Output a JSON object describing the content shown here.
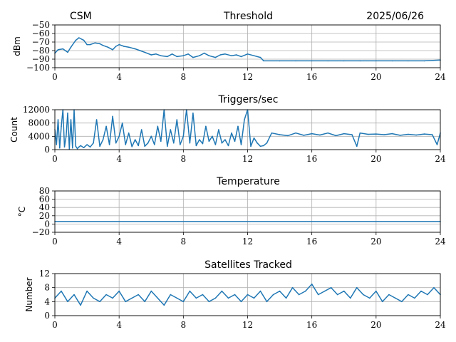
{
  "header": {
    "left": "CSM",
    "right": "2025/06/26"
  },
  "colors": {
    "series": "#1f77b4",
    "grid": "#b0b0b0"
  },
  "chart_data": [
    {
      "type": "line",
      "title": "Threshold",
      "ylabel": "dBm",
      "xlim": [
        0,
        24
      ],
      "ylim": [
        -100,
        -50
      ],
      "xticks": [
        "0",
        "4",
        "8",
        "12",
        "16",
        "20",
        "24"
      ],
      "yticks": [
        "−100",
        "−90",
        "−80",
        "−70",
        "−60",
        "−50"
      ],
      "yticks_values": [
        -100,
        -90,
        -80,
        -70,
        -60,
        -50
      ],
      "grid": true,
      "x": [
        0,
        0.2,
        0.5,
        0.8,
        1.0,
        1.3,
        1.5,
        1.8,
        2.0,
        2.2,
        2.5,
        2.8,
        3.0,
        3.3,
        3.6,
        3.8,
        4.0,
        4.3,
        4.6,
        5.0,
        5.3,
        5.6,
        6.0,
        6.3,
        6.6,
        7.0,
        7.3,
        7.6,
        8.0,
        8.3,
        8.6,
        9.0,
        9.3,
        9.6,
        10.0,
        10.3,
        10.6,
        11.0,
        11.3,
        11.6,
        12.0,
        12.4,
        12.8,
        13.0,
        14.0,
        15.0,
        16.0,
        17.0,
        18.0,
        19.0,
        20.0,
        21.0,
        22.0,
        23.0,
        24.0
      ],
      "values": [
        -83,
        -79,
        -78,
        -82,
        -76,
        -68,
        -65,
        -68,
        -73,
        -73,
        -71,
        -72,
        -74,
        -76,
        -79,
        -75,
        -73,
        -75,
        -76,
        -78,
        -80,
        -82,
        -85,
        -84,
        -86,
        -87,
        -84,
        -87,
        -86,
        -84,
        -88,
        -86,
        -83,
        -86,
        -88,
        -85,
        -84,
        -86,
        -85,
        -87,
        -84,
        -86,
        -88,
        -92,
        -92,
        -92,
        -92,
        -92,
        -92,
        -92,
        -92,
        -92,
        -92,
        -92,
        -91
      ]
    },
    {
      "type": "line",
      "title": "Triggers/sec",
      "ylabel": "Count",
      "xlim": [
        0,
        24
      ],
      "ylim": [
        0,
        12000
      ],
      "xticks": [
        "0",
        "4",
        "8",
        "12",
        "16",
        "20",
        "24"
      ],
      "yticks": [
        "0",
        "4000",
        "8000",
        "12000"
      ],
      "yticks_values": [
        0,
        4000,
        8000,
        12000
      ],
      "grid": true,
      "x": [
        0,
        0.1,
        0.2,
        0.3,
        0.4,
        0.5,
        0.6,
        0.7,
        0.8,
        0.9,
        1.0,
        1.1,
        1.2,
        1.3,
        1.4,
        1.5,
        1.6,
        1.8,
        2.0,
        2.2,
        2.4,
        2.6,
        2.8,
        3.0,
        3.2,
        3.4,
        3.6,
        3.8,
        4.0,
        4.2,
        4.4,
        4.6,
        4.8,
        5.0,
        5.2,
        5.4,
        5.6,
        5.8,
        6.0,
        6.2,
        6.4,
        6.6,
        6.8,
        7.0,
        7.2,
        7.4,
        7.6,
        7.8,
        8.0,
        8.2,
        8.4,
        8.6,
        8.8,
        9.0,
        9.2,
        9.4,
        9.6,
        9.8,
        10.0,
        10.2,
        10.4,
        10.6,
        10.8,
        11.0,
        11.2,
        11.4,
        11.6,
        11.8,
        12.0,
        12.2,
        12.4,
        12.6,
        12.8,
        13.0,
        13.2,
        13.5,
        14.0,
        14.5,
        15.0,
        15.5,
        16.0,
        16.5,
        17.0,
        17.5,
        18.0,
        18.5,
        18.8,
        19.0,
        19.5,
        20.0,
        20.5,
        21.0,
        21.5,
        22.0,
        22.5,
        23.0,
        23.5,
        23.8,
        24.0
      ],
      "values": [
        6000,
        1500,
        9000,
        500,
        7000,
        12000,
        800,
        4000,
        11000,
        200,
        9000,
        500,
        12000,
        1000,
        300,
        800,
        1200,
        600,
        1500,
        800,
        2000,
        9000,
        1000,
        3000,
        7000,
        1500,
        10000,
        2000,
        4000,
        8000,
        1500,
        5000,
        900,
        3000,
        1200,
        6000,
        1000,
        2000,
        4000,
        1500,
        7000,
        2500,
        12000,
        1000,
        6000,
        2000,
        9000,
        1500,
        4000,
        12000,
        2000,
        11000,
        1200,
        3000,
        1800,
        7000,
        2500,
        4000,
        1500,
        6000,
        2000,
        3000,
        1200,
        5000,
        2500,
        7000,
        1500,
        9000,
        12000,
        1000,
        3500,
        2000,
        1000,
        1200,
        2000,
        5000,
        4500,
        4200,
        5000,
        4300,
        4800,
        4400,
        5000,
        4200,
        4800,
        4500,
        1000,
        5000,
        4600,
        4700,
        4500,
        4800,
        4300,
        4600,
        4400,
        4700,
        4500,
        1500,
        5000
      ]
    },
    {
      "type": "line",
      "title": "Temperature",
      "ylabel": "°C",
      "xlim": [
        0,
        24
      ],
      "ylim": [
        -20,
        80
      ],
      "xticks": [
        "0",
        "4",
        "8",
        "12",
        "16",
        "20",
        "24"
      ],
      "yticks": [
        "−20",
        "0",
        "20",
        "40",
        "60",
        "80"
      ],
      "yticks_values": [
        -20,
        0,
        20,
        40,
        60,
        80
      ],
      "grid": true,
      "x": [
        0,
        24
      ],
      "values": [
        6,
        6
      ]
    },
    {
      "type": "line",
      "title": "Satellites Tracked",
      "ylabel": "Number",
      "xlim": [
        0,
        24
      ],
      "ylim": [
        0,
        12
      ],
      "xticks": [
        "0",
        "4",
        "8",
        "12",
        "16",
        "20",
        "24"
      ],
      "yticks": [
        "0",
        "4",
        "8",
        "12"
      ],
      "yticks_values": [
        0,
        4,
        8,
        12
      ],
      "grid": true,
      "x": [
        0,
        0.4,
        0.8,
        1.2,
        1.6,
        2.0,
        2.4,
        2.8,
        3.2,
        3.6,
        4.0,
        4.4,
        4.8,
        5.2,
        5.6,
        6.0,
        6.4,
        6.8,
        7.2,
        7.6,
        8.0,
        8.4,
        8.8,
        9.2,
        9.6,
        10.0,
        10.4,
        10.8,
        11.2,
        11.6,
        12.0,
        12.4,
        12.8,
        13.2,
        13.6,
        14.0,
        14.4,
        14.8,
        15.2,
        15.6,
        16.0,
        16.4,
        16.8,
        17.2,
        17.6,
        18.0,
        18.4,
        18.8,
        19.2,
        19.6,
        20.0,
        20.4,
        20.8,
        21.2,
        21.6,
        22.0,
        22.4,
        22.8,
        23.2,
        23.6,
        24.0
      ],
      "values": [
        5,
        7,
        4,
        6,
        3,
        7,
        5,
        4,
        6,
        5,
        7,
        4,
        5,
        6,
        4,
        7,
        5,
        3,
        6,
        5,
        4,
        7,
        5,
        6,
        4,
        5,
        7,
        5,
        6,
        4,
        6,
        5,
        7,
        4,
        6,
        7,
        5,
        8,
        6,
        7,
        9,
        6,
        7,
        8,
        6,
        7,
        5,
        8,
        6,
        5,
        7,
        4,
        6,
        5,
        4,
        6,
        5,
        7,
        6,
        8,
        6
      ]
    }
  ]
}
